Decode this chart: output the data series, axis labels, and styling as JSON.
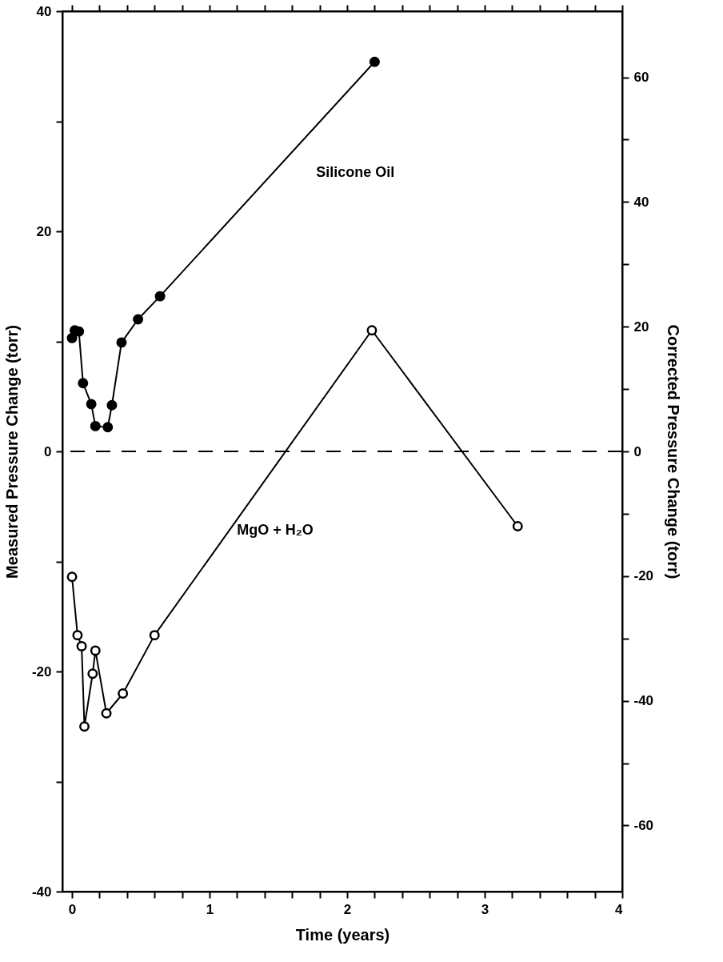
{
  "chart_data": {
    "type": "line",
    "xlabel": "Time  (years)",
    "ylabel": "Measured Pressure Change  (torr)",
    "y2label": "Corrected Pressure Change  (torr)",
    "xlim": [
      -0.07,
      4.0
    ],
    "ylim": [
      -40,
      40
    ],
    "y2lim": [
      -70.6,
      70.6
    ],
    "xticks": [
      0,
      {
        "value": 0.2,
        "label": null
      },
      {
        "value": 0.4,
        "label": null
      },
      {
        "value": 0.6,
        "label": null
      },
      {
        "value": 0.8,
        "label": null
      },
      1,
      {
        "value": 1.2,
        "label": null
      },
      {
        "value": 1.4,
        "label": null
      },
      {
        "value": 1.6,
        "label": null
      },
      {
        "value": 1.8,
        "label": null
      },
      2,
      {
        "value": 2.2,
        "label": null
      },
      {
        "value": 2.4,
        "label": null
      },
      {
        "value": 2.6,
        "label": null
      },
      {
        "value": 2.8,
        "label": null
      },
      3,
      {
        "value": 3.2,
        "label": null
      },
      {
        "value": 3.4,
        "label": null
      },
      {
        "value": 3.6,
        "label": null
      },
      {
        "value": 3.8,
        "label": null
      },
      4
    ],
    "yticks": [
      -40,
      {
        "value": -30,
        "label": null
      },
      -20,
      {
        "value": -10,
        "label": null
      },
      0,
      {
        "value": 10,
        "label": null
      },
      20,
      {
        "value": 30,
        "label": null
      },
      40
    ],
    "y2ticks": [
      -60,
      {
        "value": -50,
        "label": null
      },
      -40,
      {
        "value": -30,
        "label": null
      },
      -20,
      {
        "value": -10,
        "label": null
      },
      0,
      {
        "value": 10,
        "label": null
      },
      20,
      {
        "value": 30,
        "label": null
      },
      40,
      {
        "value": 50,
        "label": null
      },
      60
    ],
    "grid": false,
    "marker": "circle",
    "line_style": "solid",
    "series": [
      {
        "name": "Silicone Oil",
        "color": "#000000",
        "x": [
          0.0,
          0.02,
          0.05,
          0.08,
          0.14,
          0.17,
          0.26,
          0.29,
          0.36,
          0.48,
          0.64,
          2.2
        ],
        "values": [
          10.3,
          11.0,
          10.9,
          6.2,
          4.3,
          2.3,
          2.2,
          4.2,
          9.9,
          12.0,
          14.1,
          35.4
        ]
      },
      {
        "name": "MgO + H₂O",
        "color": "#000000",
        "x": [
          0.0,
          0.04,
          0.07,
          0.09,
          0.15,
          0.17,
          0.25,
          0.37,
          0.6,
          2.18,
          3.24
        ],
        "values": [
          -11.4,
          -16.7,
          -17.7,
          -25.0,
          -20.2,
          -18.1,
          -23.8,
          -22.0,
          -16.7,
          11.0,
          -6.8
        ]
      }
    ],
    "ref_lines": [
      {
        "axis": "y",
        "value": 0,
        "line_style": "dashed",
        "color": "#000000"
      }
    ]
  }
}
